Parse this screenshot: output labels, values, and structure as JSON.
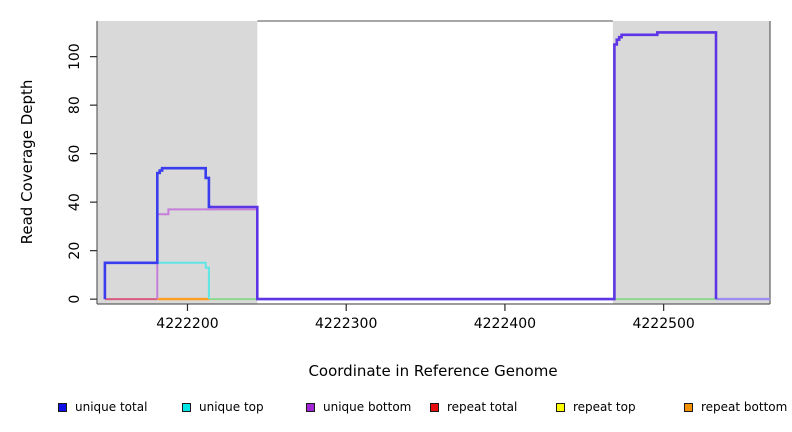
{
  "chart_data": {
    "type": "line",
    "step": true,
    "title": "",
    "xlabel": "Coordinate in Reference Genome",
    "ylabel": "Read Coverage Depth",
    "xlim": [
      4222143,
      4222567
    ],
    "ylim": [
      -2,
      114.7
    ],
    "xticks": [
      4222200,
      4222300,
      4222400,
      4222500
    ],
    "xtick_labels": [
      "4222200",
      "4222300",
      "4222400",
      "4222500"
    ],
    "yticks": [
      0,
      20,
      40,
      60,
      80,
      100
    ],
    "ytick_labels": [
      "0",
      "20",
      "40",
      "60",
      "80",
      "100"
    ],
    "grid": false,
    "plot_background": "#ffffff",
    "shaded_regions": {
      "color": "#d9d9d9",
      "x_ranges": [
        [
          4222143,
          4222244
        ],
        [
          4222468,
          4222567
        ]
      ]
    },
    "legend": {
      "position": "bottom",
      "items": [
        {
          "label": "unique total",
          "color": "#0f0fe8"
        },
        {
          "label": "unique top",
          "color": "#00e5e5"
        },
        {
          "label": "unique bottom",
          "color": "#a326d4"
        },
        {
          "label": "repeat total",
          "color": "#e80d0d"
        },
        {
          "label": "repeat top",
          "color": "#fdfd00"
        },
        {
          "label": "repeat bottom",
          "color": "#f29100"
        }
      ]
    },
    "series": [
      {
        "name": "unique total",
        "color": "#0f0fe8",
        "points": [
          [
            4222148,
            0
          ],
          [
            4222148,
            15
          ],
          [
            4222181,
            15
          ],
          [
            4222181,
            52
          ],
          [
            4222184,
            54
          ],
          [
            4222211,
            54
          ],
          [
            4222212,
            50
          ],
          [
            4222214,
            38
          ],
          [
            4222244,
            38
          ],
          [
            4222244,
            0
          ],
          [
            4222469,
            0
          ],
          [
            4222469,
            105
          ],
          [
            4222474,
            109
          ],
          [
            4222496,
            110
          ],
          [
            4222533,
            110
          ],
          [
            4222533,
            0
          ],
          [
            4222567,
            0
          ]
        ]
      },
      {
        "name": "unique top",
        "color": "#00e5e5",
        "points": [
          [
            4222148,
            0
          ],
          [
            4222148,
            15
          ],
          [
            4222211,
            15
          ],
          [
            4222212,
            13
          ],
          [
            4222214,
            0
          ],
          [
            4222567,
            0
          ]
        ]
      },
      {
        "name": "unique bottom",
        "color": "#a326d4",
        "points": [
          [
            4222148,
            0
          ],
          [
            4222181,
            0
          ],
          [
            4222181,
            35
          ],
          [
            4222188,
            37
          ],
          [
            4222244,
            37
          ],
          [
            4222244,
            0
          ],
          [
            4222469,
            0
          ],
          [
            4222469,
            105
          ],
          [
            4222474,
            109
          ],
          [
            4222496,
            110
          ],
          [
            4222533,
            110
          ],
          [
            4222533,
            0
          ],
          [
            4222567,
            0
          ]
        ]
      },
      {
        "name": "repeat total",
        "color": "#e80d0d",
        "points": [
          [
            4222148,
            0
          ],
          [
            4222567,
            0
          ]
        ]
      },
      {
        "name": "repeat top",
        "color": "#fdfd00",
        "points": [
          [
            4222148,
            0
          ],
          [
            4222567,
            0
          ]
        ]
      },
      {
        "name": "repeat bottom",
        "color": "#f29100",
        "points": [
          [
            4222148,
            0
          ],
          [
            4222567,
            0
          ]
        ]
      }
    ],
    "visible_segments": [
      {
        "name": "baseline-repeat-total",
        "color": "#d85a80",
        "width": 2,
        "points": [
          [
            4222148,
            0
          ],
          [
            4222181,
            0
          ]
        ]
      },
      {
        "name": "baseline-repeat-bottom",
        "color": "#ff9d1f",
        "width": 2.4,
        "points": [
          [
            4222181,
            0
          ],
          [
            4222214,
            0
          ]
        ]
      },
      {
        "name": "baseline-overlap-left",
        "color": "#8ed88e",
        "width": 2,
        "points": [
          [
            4222214,
            0
          ],
          [
            4222244,
            0
          ]
        ]
      },
      {
        "name": "baseline-overlap-right",
        "color": "#8ed88e",
        "width": 2,
        "points": [
          [
            4222469,
            0
          ],
          [
            4222533,
            0
          ]
        ]
      },
      {
        "name": "baseline-tail",
        "color": "#9e8cf2",
        "width": 2.4,
        "points": [
          [
            4222533,
            0
          ],
          [
            4222567,
            0
          ]
        ]
      },
      {
        "name": "unique-bottom-line",
        "color": "#c67edb",
        "width": 2,
        "points": [
          [
            4222181,
            0
          ],
          [
            4222181,
            35
          ],
          [
            4222188,
            35
          ],
          [
            4222188,
            37
          ],
          [
            4222244,
            37
          ]
        ]
      },
      {
        "name": "unique-top-line",
        "color": "#5ee6e6",
        "width": 2,
        "points": [
          [
            4222181,
            15
          ],
          [
            4222211.5,
            15
          ],
          [
            4222211.5,
            13
          ],
          [
            4222213.5,
            13
          ],
          [
            4222213.5,
            0
          ]
        ]
      },
      {
        "name": "unique-total-line",
        "color": "#3a3ded",
        "width": 2.6,
        "points": [
          [
            4222148,
            0
          ],
          [
            4222148,
            15
          ],
          [
            4222181,
            15
          ],
          [
            4222181,
            52
          ],
          [
            4222182.5,
            52
          ],
          [
            4222182.5,
            53
          ],
          [
            4222184,
            53
          ],
          [
            4222184,
            54
          ],
          [
            4222211.5,
            54
          ],
          [
            4222211.5,
            50
          ],
          [
            4222213.5,
            50
          ],
          [
            4222213.5,
            38
          ],
          [
            4222215.5,
            38
          ]
        ]
      },
      {
        "name": "total-bottom-overlap-line",
        "color": "#5d35e6",
        "width": 2.6,
        "points": [
          [
            4222215,
            38
          ],
          [
            4222244,
            38
          ],
          [
            4222244,
            0
          ],
          [
            4222469,
            0
          ],
          [
            4222469,
            105
          ],
          [
            4222470.5,
            105
          ],
          [
            4222470.5,
            107
          ],
          [
            4222472,
            107
          ],
          [
            4222472,
            108
          ],
          [
            4222473.5,
            108
          ],
          [
            4222473.5,
            109
          ],
          [
            4222496,
            109
          ],
          [
            4222496,
            110
          ],
          [
            4222533,
            110
          ],
          [
            4222533,
            0
          ]
        ]
      }
    ],
    "axis_color": "#606060",
    "tick_color": "#2a2a2a",
    "tick_label_color": "#000000"
  }
}
